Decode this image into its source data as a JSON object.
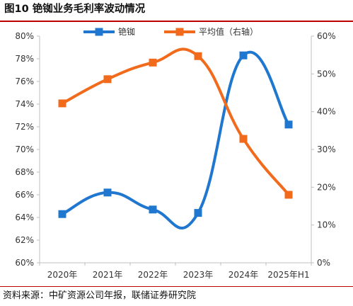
{
  "header": {
    "title": "图10 铯铷业务毛利率波动情况"
  },
  "footer": {
    "source": "资料来源：中矿资源公司年报，联储证券研究院"
  },
  "colors": {
    "series_primary": "#1f77d0",
    "series_secondary": "#f26b1d",
    "axis": "#bfbfbf",
    "rule": "#c00000"
  },
  "chart_data": {
    "type": "line",
    "title": "",
    "xlabel": "",
    "ylabel": "",
    "categories": [
      "2020年",
      "2021年",
      "2022年",
      "2023年",
      "2024年",
      "2025年H1"
    ],
    "ylim_left": [
      60,
      80
    ],
    "ylim_right": [
      0,
      60
    ],
    "left_ticks": [
      "60%",
      "62%",
      "64%",
      "66%",
      "68%",
      "70%",
      "72%",
      "74%",
      "76%",
      "78%",
      "80%"
    ],
    "right_ticks": [
      "0%",
      "10%",
      "20%",
      "30%",
      "40%",
      "50%",
      "60%"
    ],
    "grid": false,
    "legend_position": "top",
    "series": [
      {
        "name": "铯铷",
        "axis": "left",
        "values": [
          64.3,
          66.2,
          64.7,
          64.4,
          78.3,
          72.2
        ]
      },
      {
        "name": "平均值（右轴）",
        "axis": "right",
        "values": [
          42.2,
          48.6,
          53.0,
          54.7,
          32.8,
          18.0
        ]
      }
    ]
  }
}
